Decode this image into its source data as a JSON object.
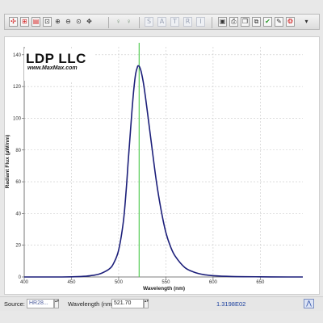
{
  "toolbar": {
    "tools": [
      {
        "name": "select-icon",
        "glyph": "✣"
      },
      {
        "name": "grid-icon",
        "glyph": "⊞"
      },
      {
        "name": "clipboard-icon",
        "glyph": "▤"
      },
      {
        "name": "zoom-box-icon",
        "glyph": "⊡"
      },
      {
        "name": "zoom-in-icon",
        "glyph": "⊕"
      },
      {
        "name": "zoom-out-icon",
        "glyph": "⊖"
      },
      {
        "name": "zoom-reset-icon",
        "glyph": "⊙"
      },
      {
        "name": "pan-icon",
        "glyph": "✥"
      },
      {
        "name": "marker-add-icon",
        "glyph": "♀"
      },
      {
        "name": "marker-remove-icon",
        "glyph": "♀"
      },
      {
        "name": "save-icon",
        "glyph": "▣"
      },
      {
        "name": "print-icon",
        "glyph": "⎙"
      },
      {
        "name": "copy-icon",
        "glyph": "❐"
      },
      {
        "name": "export-icon",
        "glyph": "⧉"
      },
      {
        "name": "check-icon",
        "glyph": "✔"
      },
      {
        "name": "edit-icon",
        "glyph": "✎"
      },
      {
        "name": "settings-icon",
        "glyph": "❂"
      },
      {
        "name": "dropdown-icon",
        "glyph": "▾"
      }
    ],
    "letters": [
      "S",
      "A",
      "T",
      "R",
      "I"
    ]
  },
  "logo": {
    "name": "LDP LLC",
    "url": "www.MaxMax.com"
  },
  "colors": {
    "curve": "#1c1f7a",
    "marker": "#55cc55",
    "grid": "#c8c8c8"
  },
  "chart_data": {
    "type": "line",
    "xlabel": "Wavelength (nm)",
    "ylabel": "Radiant Flux (µW/nm)",
    "xlim": [
      400,
      695
    ],
    "ylim": [
      0,
      145
    ],
    "xticks": [
      400,
      450,
      500,
      550,
      600,
      650
    ],
    "yticks": [
      0,
      20,
      40,
      60,
      80,
      100,
      120,
      140
    ],
    "grid": true,
    "marker_x": 521.7,
    "series": [
      {
        "x": [
          400,
          440,
          460,
          470,
          480,
          490,
          495,
          500,
          505,
          508,
          510,
          512,
          514,
          516,
          518,
          520,
          521,
          522,
          523,
          524,
          526,
          528,
          530,
          533,
          536,
          540,
          545,
          550,
          555,
          560,
          570,
          580,
          590,
          600,
          620,
          650,
          680,
          695
        ],
        "y": [
          0,
          0,
          0.3,
          0.8,
          2,
          5,
          9,
          17,
          35,
          55,
          72,
          88,
          104,
          118,
          128,
          132.5,
          133,
          132.5,
          131,
          129,
          123,
          115,
          106,
          92,
          78,
          60,
          42,
          28,
          19,
          13,
          6,
          3,
          1.5,
          0.8,
          0.3,
          0.1,
          0,
          0
        ]
      }
    ]
  },
  "status": {
    "source_label": "Source:",
    "source_value": "HR28...",
    "wavelength_label": "Wavelength (nm):",
    "wavelength_value": "521.70",
    "flux_value": "1.3198E02"
  }
}
